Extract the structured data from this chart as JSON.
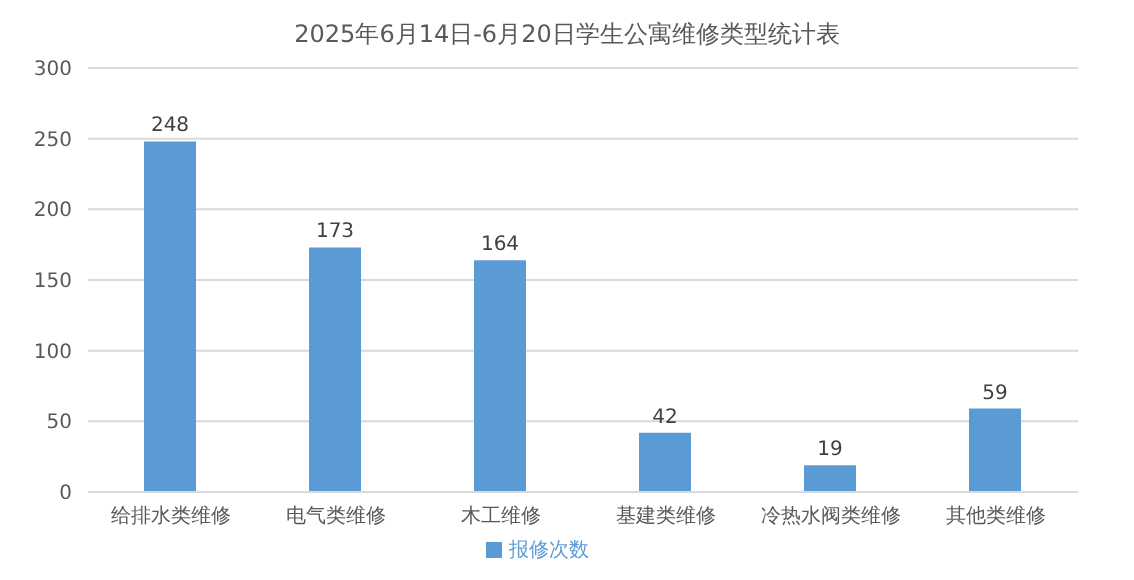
{
  "chart_data": {
    "type": "bar",
    "title": "2025年6月14日-6月20日学生公寓维修类型统计表",
    "categories": [
      "给排水类维修",
      "电气类维修",
      "木工维修",
      "基建类维修",
      "冷热水阀类维修",
      "其他类维修"
    ],
    "series": [
      {
        "name": "报修次数",
        "color": "#5b9bd5",
        "values": [
          248,
          173,
          164,
          42,
          19,
          59
        ]
      }
    ],
    "ylim": [
      0,
      300
    ],
    "yticks": [
      0,
      50,
      100,
      150,
      200,
      250,
      300
    ],
    "grid": "y",
    "legend": "bottom",
    "data_labels": true
  }
}
